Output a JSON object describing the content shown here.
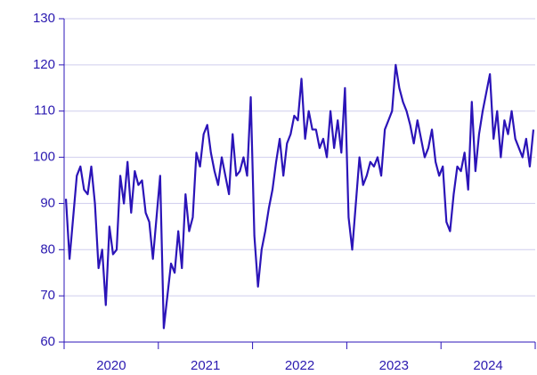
{
  "chart_data": {
    "type": "line",
    "categories": [
      null,
      null,
      null,
      null,
      null,
      null,
      null,
      null,
      null,
      null,
      null,
      null,
      null,
      "2020",
      null,
      null,
      null,
      null,
      null,
      null,
      null,
      null,
      null,
      null,
      null,
      null,
      null,
      null,
      null,
      null,
      null,
      null,
      null,
      null,
      null,
      null,
      null,
      null,
      null,
      "2021",
      null,
      null,
      null,
      null,
      null,
      null,
      null,
      null,
      null,
      null,
      null,
      null,
      null,
      null,
      null,
      null,
      null,
      null,
      null,
      null,
      null,
      null,
      null,
      null,
      null,
      "2022",
      null,
      null,
      null,
      null,
      null,
      null,
      null,
      null,
      null,
      null,
      null,
      null,
      null,
      null,
      null,
      null,
      null,
      null,
      null,
      null,
      null,
      null,
      null,
      null,
      null,
      "2023",
      null,
      null,
      null,
      null,
      null,
      null,
      null,
      null,
      null,
      null,
      null,
      null,
      null,
      null,
      null,
      null,
      null,
      null,
      null,
      null,
      null,
      null,
      null,
      null,
      null,
      "2024",
      null,
      null,
      null,
      null,
      null,
      null,
      null,
      null,
      null,
      null,
      null,
      null
    ],
    "values": [
      91,
      78,
      87,
      96,
      98,
      93,
      92,
      98,
      90,
      76,
      80,
      68,
      85,
      79,
      80,
      96,
      90,
      99,
      88,
      97,
      94,
      95,
      88,
      86,
      78,
      87,
      96,
      63,
      70,
      77,
      75,
      84,
      76,
      92,
      84,
      87,
      101,
      98,
      105,
      107,
      101,
      97,
      94,
      100,
      96,
      92,
      105,
      96,
      97,
      100,
      96,
      113,
      83,
      72,
      80,
      84,
      89,
      93,
      99,
      104,
      96,
      103,
      105,
      109,
      108,
      117,
      104,
      110,
      106,
      106,
      102,
      104,
      100,
      110,
      102,
      108,
      101,
      115,
      87,
      80,
      90,
      100,
      94,
      96,
      99,
      98,
      100,
      96,
      106,
      108,
      110,
      120,
      115,
      112,
      110,
      107,
      103,
      108,
      104,
      100,
      102,
      106,
      99,
      96,
      98,
      86,
      84,
      92,
      98,
      97,
      101,
      93,
      112,
      97,
      105,
      110,
      114,
      118,
      104,
      110,
      100,
      108,
      105,
      110,
      104,
      102,
      100,
      104,
      98,
      106
    ],
    "color": "#2b14b8",
    "ylim": [
      60,
      130
    ],
    "yticks": [
      60,
      70,
      80,
      90,
      100,
      110,
      120,
      130
    ],
    "grid": true
  }
}
